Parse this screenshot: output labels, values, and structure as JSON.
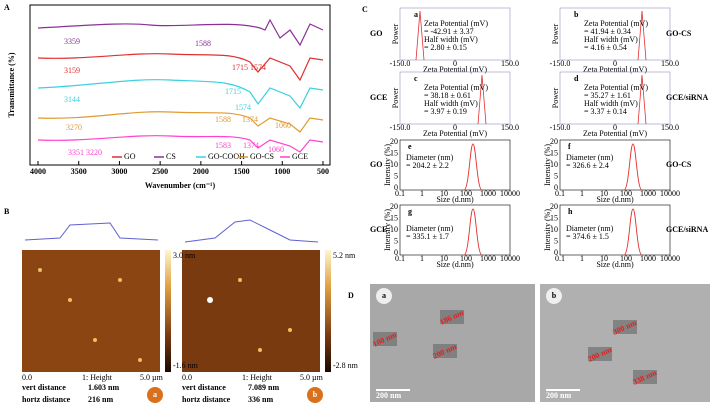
{
  "panel_a": {
    "label": "A",
    "y_label": "Transmittance (%)",
    "x_label": "Wavenumber (cm⁻¹)",
    "x_ticks": [
      "4000",
      "3500",
      "3000",
      "2500",
      "2000",
      "1500",
      "1000",
      "500"
    ],
    "peaks": [
      "3359",
      "1588",
      "3159",
      "1715 1574",
      "3144",
      "1715",
      "1574",
      "3270",
      "1588",
      "1374",
      "1060",
      "3351 3220",
      "1583",
      "1374",
      "1060"
    ],
    "legend": [
      "GO",
      "CS",
      "GO-COOH",
      "GO-CS",
      "GCE"
    ]
  },
  "panel_b": {
    "label": "B",
    "images": [
      {
        "letter": "a",
        "scale_max": "3.0 nm",
        "scale_min": "-1.6 nm",
        "x_start": "0.0",
        "channel": "1: Height",
        "x_end": "5.0 µm",
        "vert_label": "vert distance",
        "vert": "1.603 nm",
        "hortz_label": "hortz distance",
        "hortz": "216 nm"
      },
      {
        "letter": "b",
        "scale_max": "5.2 nm",
        "scale_min": "-2.8 nm",
        "x_start": "0.0",
        "channel": "1: Height",
        "x_end": "5.0 µm",
        "vert_label": "vert distance",
        "vert": "7.089 nm",
        "hortz_label": "hortz distance",
        "hortz": "336 nm"
      }
    ]
  },
  "panel_c": {
    "label": "C",
    "zeta": [
      {
        "letter": "a",
        "sample": "GO",
        "title": "Zeta Potential (mV)",
        "potential": "= -42.91 ± 3.37",
        "hw_title": "Half width (mV)",
        "hw": "= 2.80 ± 0.15"
      },
      {
        "letter": "b",
        "sample": "GO-CS",
        "title": "Zeta Potential (mV)",
        "potential": "= 41.94 ± 0.34",
        "hw_title": "Half width (mV)",
        "hw": "= 4.16 ± 0.54"
      },
      {
        "letter": "c",
        "sample": "GCE",
        "title": "Zeta Potential (mV)",
        "potential": "= 38.18 ± 0.61",
        "hw_title": "Half width (mV)",
        "hw": "= 3.97 ± 0.19"
      },
      {
        "letter": "d",
        "sample": "GCE/siRNA",
        "title": "Zeta Potential (mV)",
        "potential": "= 35.27 ± 1.61",
        "hw_title": "Half width (mV)",
        "hw": "= 3.37 ± 0.14"
      }
    ],
    "zeta_axis": {
      "y_label": "Power",
      "x_label": "Zeta Potential (mV)",
      "ticks": [
        "-150.0",
        "0",
        "150.0"
      ]
    },
    "size": [
      {
        "letter": "e",
        "sample": "GO",
        "title": "Diameter (nm)",
        "diameter": "= 204.2 ± 2.2"
      },
      {
        "letter": "f",
        "sample": "GO-CS",
        "title": "Diameter (nm)",
        "diameter": "= 326.6 ± 2.4"
      },
      {
        "letter": "g",
        "sample": "GCE",
        "title": "Diameter (nm)",
        "diameter": "= 335.1 ± 1.7"
      },
      {
        "letter": "h",
        "sample": "GCE/siRNA",
        "title": "Diameter (nm)",
        "diameter": "= 374.6 ± 1.5"
      }
    ],
    "size_axis": {
      "y_label": "Intensity (%)",
      "x_label": "Size (d.nm)",
      "x_ticks": [
        "0.1",
        "1",
        "10",
        "100",
        "1000",
        "10000"
      ],
      "y_ticks": [
        "20",
        "15",
        "10",
        "5",
        "0"
      ]
    }
  },
  "panel_d": {
    "label": "D",
    "images": [
      {
        "letter": "a",
        "scale": "200 nm",
        "measures": [
          "186 nm",
          "100 nm",
          "200 nm"
        ]
      },
      {
        "letter": "b",
        "scale": "200 nm",
        "measures": [
          "300 nm",
          "200 nm",
          "338 nm"
        ]
      }
    ]
  }
}
